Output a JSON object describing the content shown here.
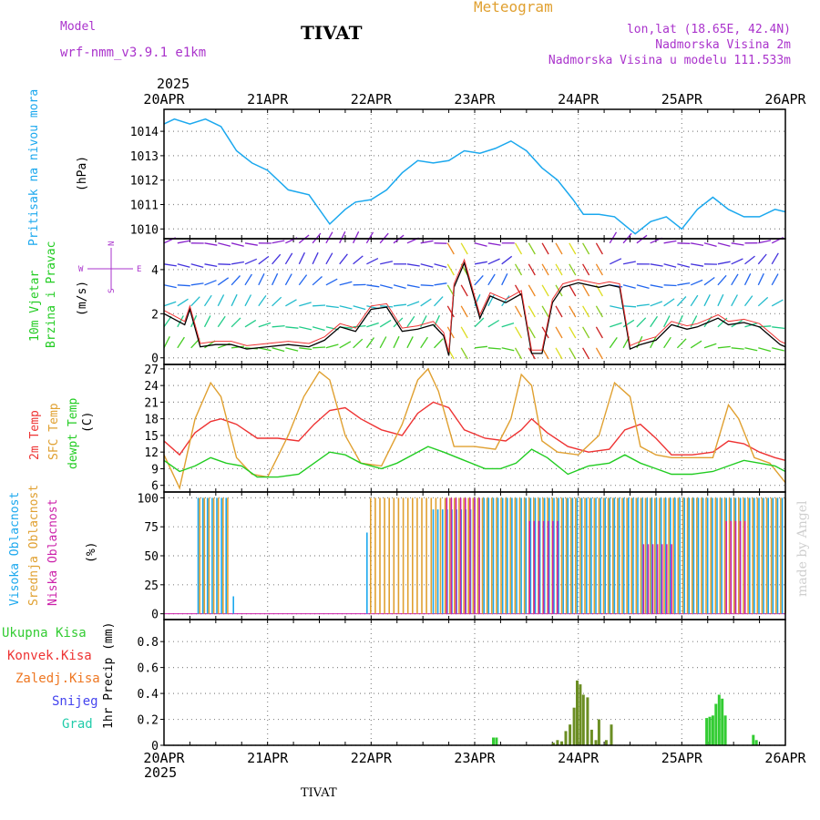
{
  "header": {
    "model_label": "Model",
    "model_name": "wrf-nmm_v3.9.1 e1km",
    "station_title": "TIVAT",
    "meteogram_label": "Meteogram",
    "lonlat": "lon,lat (18.65E, 42.4N)",
    "altitude": "Nadmorska Visina 2m",
    "model_altitude": "Nadmorska Visina u modelu 111.533m",
    "year_top": "2025",
    "year_bottom": "2025",
    "station_bottom": "TIVAT",
    "watermark": "made by Angel"
  },
  "colors": {
    "pressure": "#1ba8ee",
    "temp2m": "#ee3333",
    "sfc_temp": "#e0a030",
    "dewpt": "#22cc22",
    "cloud_high": "#1ba8ee",
    "cloud_mid": "#e0a030",
    "cloud_low": "#cc22aa",
    "rain_total": "#33cc33",
    "rain_conv": "#ee3333",
    "rain_frz": "#ee7722",
    "snow": "#4444ee",
    "graupel": "#22ccaa",
    "header_purple": "#aa33cc",
    "meteogram_orange": "#e0a030",
    "grid": "#888888"
  },
  "chart_data": [
    {
      "panel": "pressure",
      "type": "line",
      "labels": {
        "ylabel_name": "Pritisak na nivou mora",
        "unit": "(hPa)"
      },
      "x_ticks": [
        "20APR",
        "21APR",
        "22APR",
        "23APR",
        "24APR",
        "25APR",
        "26APR"
      ],
      "ylim": [
        1009.6,
        1014.9
      ],
      "y_ticks": [
        1010,
        1011,
        1012,
        1013,
        1014
      ],
      "grid": true,
      "series": [
        {
          "name": "Pritisak na nivou mora",
          "x": [
            0,
            0.1,
            0.25,
            0.4,
            0.55,
            0.7,
            0.85,
            1.0,
            1.2,
            1.4,
            1.6,
            1.75,
            1.85,
            2.0,
            2.15,
            2.3,
            2.45,
            2.6,
            2.75,
            2.9,
            3.05,
            3.2,
            3.35,
            3.5,
            3.65,
            3.8,
            3.95,
            4.05,
            4.2,
            4.35,
            4.55,
            4.7,
            4.85,
            5.0,
            5.15,
            5.3,
            5.45,
            5.6,
            5.75,
            5.9,
            6.0
          ],
          "y": [
            1014.3,
            1014.5,
            1014.3,
            1014.5,
            1014.2,
            1013.2,
            1012.7,
            1012.4,
            1011.6,
            1011.4,
            1010.2,
            1010.8,
            1011.1,
            1011.2,
            1011.6,
            1012.3,
            1012.8,
            1012.7,
            1012.8,
            1013.2,
            1013.1,
            1013.3,
            1013.6,
            1013.2,
            1012.5,
            1012.0,
            1011.2,
            1010.6,
            1010.6,
            1010.5,
            1009.8,
            1010.3,
            1010.5,
            1010.0,
            1010.8,
            1011.3,
            1010.8,
            1010.5,
            1010.5,
            1010.8,
            1010.7
          ]
        }
      ]
    },
    {
      "panel": "wind",
      "type": "line",
      "labels": {
        "ylabel_name": "10m Vjetar",
        "ylabel_sub": "Brzina i Pravac",
        "unit": "(m/s)",
        "compass_n": "N",
        "compass_w": "W",
        "compass_e": "E",
        "compass_s": "S"
      },
      "ylim": [
        -0.3,
        5.4
      ],
      "y_ticks": [
        0,
        2,
        4
      ],
      "grid": true,
      "series": [
        {
          "name": "10m Vjetar",
          "x": [
            0,
            0.2,
            0.25,
            0.35,
            0.5,
            0.65,
            0.8,
            1.0,
            1.2,
            1.4,
            1.55,
            1.7,
            1.85,
            2.0,
            2.15,
            2.3,
            2.45,
            2.6,
            2.7,
            2.75,
            2.8,
            2.9,
            3.05,
            3.15,
            3.3,
            3.45,
            3.55,
            3.65,
            3.75,
            3.85,
            4.0,
            4.2,
            4.3,
            4.4,
            4.5,
            4.6,
            4.75,
            4.9,
            5.05,
            5.15,
            5.25,
            5.35,
            5.45,
            5.6,
            5.75,
            5.85,
            5.95,
            6.0
          ],
          "y": [
            2.0,
            1.5,
            2.2,
            0.5,
            0.6,
            0.6,
            0.4,
            0.5,
            0.6,
            0.5,
            0.8,
            1.4,
            1.2,
            2.2,
            2.3,
            1.2,
            1.3,
            1.5,
            1.0,
            0.1,
            3.2,
            4.3,
            1.8,
            2.8,
            2.5,
            2.9,
            0.2,
            0.2,
            2.5,
            3.2,
            3.4,
            3.2,
            3.3,
            3.2,
            0.4,
            0.6,
            0.8,
            1.5,
            1.3,
            1.4,
            1.6,
            1.8,
            1.5,
            1.6,
            1.4,
            1.0,
            0.6,
            0.5
          ]
        }
      ]
    },
    {
      "panel": "temperature",
      "type": "line",
      "labels": {
        "ylabel_a": "2m Temp",
        "ylabel_b": "SFC Temp",
        "ylabel_c": "dewpt Temp",
        "unit": "(C)"
      },
      "ylim": [
        4.8,
        27.8
      ],
      "y_ticks": [
        6,
        9,
        12,
        15,
        18,
        21,
        24,
        27
      ],
      "grid": true,
      "series": [
        {
          "name": "2m Temp",
          "x": [
            0,
            0.15,
            0.3,
            0.45,
            0.55,
            0.7,
            0.9,
            1.1,
            1.3,
            1.45,
            1.6,
            1.75,
            1.9,
            2.1,
            2.3,
            2.45,
            2.6,
            2.75,
            2.9,
            3.1,
            3.3,
            3.45,
            3.55,
            3.7,
            3.9,
            4.1,
            4.3,
            4.45,
            4.6,
            4.75,
            4.9,
            5.1,
            5.3,
            5.45,
            5.6,
            5.75,
            5.9,
            6.0
          ],
          "y": [
            14,
            11.5,
            15.5,
            17.5,
            18,
            17,
            14.5,
            14.5,
            14,
            17,
            19.5,
            20,
            18,
            16,
            15,
            19,
            21,
            20,
            16,
            14.5,
            14,
            16,
            18,
            15.5,
            13,
            12,
            12.5,
            16,
            17,
            14.5,
            11.5,
            11.5,
            12,
            14,
            13.5,
            12,
            11,
            10.5
          ]
        },
        {
          "name": "SFC Temp",
          "x": [
            0,
            0.15,
            0.3,
            0.45,
            0.55,
            0.7,
            0.85,
            1.0,
            1.2,
            1.35,
            1.5,
            1.6,
            1.75,
            1.9,
            2.1,
            2.3,
            2.45,
            2.55,
            2.65,
            2.8,
            3.0,
            3.2,
            3.35,
            3.45,
            3.55,
            3.65,
            3.8,
            4.0,
            4.2,
            4.35,
            4.5,
            4.6,
            4.75,
            4.9,
            5.1,
            5.3,
            5.45,
            5.55,
            5.7,
            5.85,
            6.0
          ],
          "y": [
            11.5,
            5.5,
            18,
            24.5,
            22,
            11,
            8,
            7.5,
            15,
            22,
            26.5,
            25,
            15,
            10,
            9.5,
            17,
            25,
            27,
            23,
            13,
            13,
            12.5,
            18,
            26,
            24,
            14,
            12,
            11.5,
            15,
            24.5,
            22,
            13,
            11.5,
            11,
            11,
            11,
            20.5,
            18,
            11,
            10,
            6.5
          ]
        },
        {
          "name": "dewpt Temp",
          "x": [
            0,
            0.15,
            0.3,
            0.45,
            0.6,
            0.75,
            0.9,
            1.1,
            1.3,
            1.45,
            1.6,
            1.75,
            1.9,
            2.1,
            2.25,
            2.4,
            2.55,
            2.7,
            2.9,
            3.1,
            3.25,
            3.4,
            3.55,
            3.7,
            3.9,
            4.1,
            4.3,
            4.45,
            4.6,
            4.75,
            4.9,
            5.1,
            5.3,
            5.45,
            5.6,
            5.75,
            5.9,
            6.0
          ],
          "y": [
            10.5,
            8.5,
            9.5,
            11,
            10,
            9.5,
            7.5,
            7.5,
            8,
            10,
            12,
            11.5,
            10,
            9,
            10,
            11.5,
            13,
            12,
            10.5,
            9,
            9,
            10,
            12.5,
            11,
            8,
            9.5,
            10,
            11.5,
            10,
            9,
            8,
            8,
            8.5,
            9.5,
            10.5,
            10,
            9.5,
            8.5
          ]
        }
      ]
    },
    {
      "panel": "cloud",
      "type": "bar",
      "labels": {
        "ylabel_a": "Visoka Oblacnost",
        "ylabel_b": "Srednja Oblacnost",
        "ylabel_c": "Niska Oblacnost",
        "unit": "(%)"
      },
      "ylim": [
        -5,
        105
      ],
      "y_ticks": [
        0,
        25,
        50,
        75,
        100
      ],
      "grid": true,
      "series": [
        {
          "name": "Visoka Oblacnost",
          "ranges": [
            [
              0.33,
              0.62,
              100
            ],
            [
              0.67,
              0.68,
              15
            ],
            [
              1.96,
              2.0,
              70
            ],
            [
              2.6,
              3.0,
              90
            ],
            [
              3.0,
              6.0,
              100
            ]
          ]
        },
        {
          "name": "Srednja Oblacnost",
          "ranges": [
            [
              0.33,
              0.62,
              100
            ],
            [
              1.98,
              6.0,
              100
            ]
          ]
        },
        {
          "name": "Niska Oblacnost",
          "ranges": [
            [
              2.7,
              3.05,
              100
            ],
            [
              3.5,
              3.8,
              80
            ],
            [
              4.6,
              4.9,
              60
            ],
            [
              5.4,
              5.6,
              80
            ]
          ]
        }
      ]
    },
    {
      "panel": "precip",
      "type": "bar",
      "labels": {
        "unit": "1hr Precip (mm)"
      },
      "legend": [
        "Ukupna Kisa",
        "Konvek.Kisa",
        "Zaledj.Kisa",
        "Snijeg",
        "Grad"
      ],
      "ylim": [
        0,
        0.97
      ],
      "y_ticks": [
        0,
        0.2,
        0.4,
        0.6,
        0.8
      ],
      "grid": true,
      "x_ticks": [
        "20APR",
        "21APR",
        "22APR",
        "23APR",
        "24APR",
        "25APR",
        "26APR"
      ],
      "series": [
        {
          "name": "Ukupna Kisa",
          "x": [
            3.18,
            3.21,
            3.76,
            3.8,
            3.84,
            3.88,
            3.92,
            3.96,
            3.99,
            4.02,
            4.05,
            4.09,
            4.13,
            4.17,
            4.2,
            4.27,
            4.32,
            5.24,
            5.27,
            5.3,
            5.33,
            5.36,
            5.39,
            5.42,
            5.69,
            5.72
          ],
          "y": [
            0.06,
            0.06,
            0.02,
            0.04,
            0.03,
            0.11,
            0.16,
            0.29,
            0.5,
            0.47,
            0.39,
            0.37,
            0.12,
            0.04,
            0.2,
            0.04,
            0.16,
            0.21,
            0.22,
            0.23,
            0.32,
            0.39,
            0.36,
            0.23,
            0.08,
            0.04
          ]
        }
      ]
    }
  ]
}
